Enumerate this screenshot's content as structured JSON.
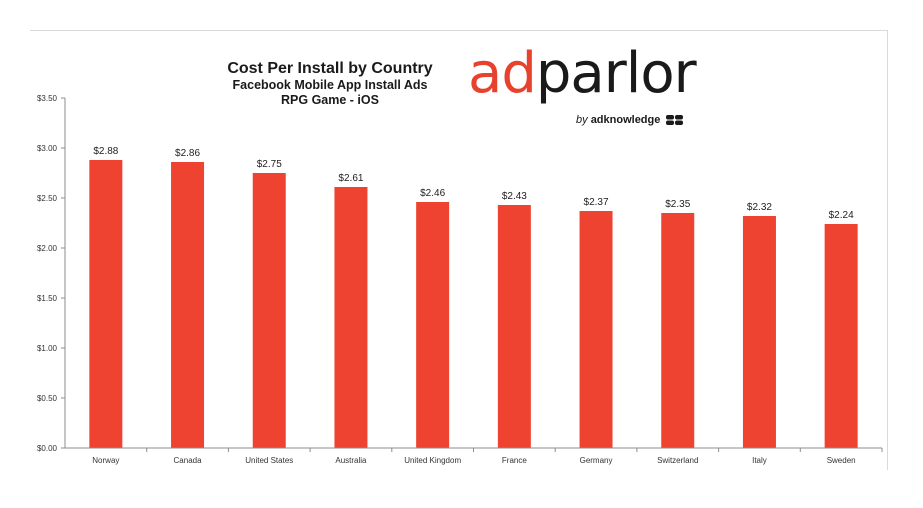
{
  "chart_data": {
    "type": "bar",
    "title": "Cost Per Install by Country",
    "subtitle_lines": [
      "Facebook Mobile App Install Ads",
      "RPG Game - iOS"
    ],
    "xlabel": "",
    "ylabel": "",
    "categories": [
      "Norway",
      "Canada",
      "United States",
      "Australia",
      "United Kingdom",
      "France",
      "Germany",
      "Switzerland",
      "Italy",
      "Sweden"
    ],
    "values": [
      2.88,
      2.86,
      2.75,
      2.61,
      2.46,
      2.43,
      2.37,
      2.35,
      2.32,
      2.24
    ],
    "data_labels": [
      "$2.88",
      "$2.86",
      "$2.75",
      "$2.61",
      "$2.46",
      "$2.43",
      "$2.37",
      "$2.35",
      "$2.32",
      "$2.24"
    ],
    "ylim": [
      0,
      3.5
    ],
    "yticks": [
      0,
      0.5,
      1,
      1.5,
      2,
      2.5,
      3,
      3.5
    ],
    "ytick_labels": [
      "$0.00",
      "$0.50",
      "$1.00",
      "$1.50",
      "$2.00",
      "$2.50",
      "$3.00",
      "$3.50"
    ],
    "grid": false,
    "legend": "none",
    "bar_color": "#ee4330"
  },
  "logo": {
    "word_accent": "ad",
    "word_rest": "parlor",
    "by_prefix": "by",
    "by_brand": "adknowledge",
    "accent_color": "#e8422f"
  }
}
